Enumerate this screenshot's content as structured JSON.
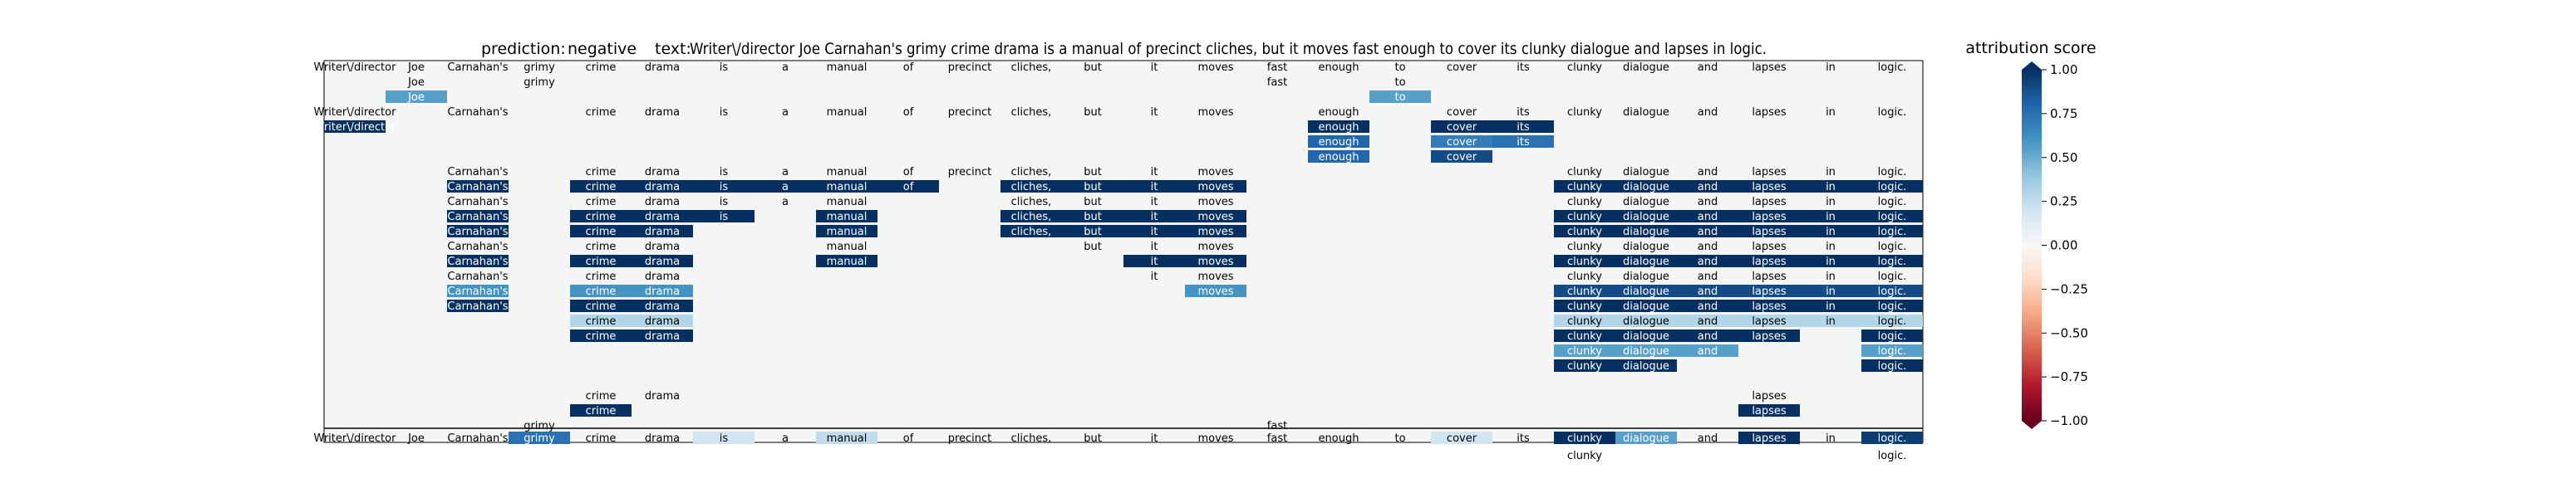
{
  "title": {
    "prediction_label": "prediction:",
    "prediction_value": "negative",
    "text_label": "text:",
    "text_value": "Writer\\/director Joe Carnahan's grimy crime drama is a manual of precinct cliches, but it moves fast enough to cover its clunky dialogue and lapses in logic."
  },
  "colorbar": {
    "title": "attribution score",
    "ticks": [
      "1.00",
      "0.75",
      "0.50",
      "0.25",
      "0.00",
      "−0.25",
      "−0.50",
      "−0.75",
      "−1.00"
    ],
    "tick_values": [
      1.0,
      0.75,
      0.5,
      0.25,
      0.0,
      -0.25,
      -0.5,
      -0.75,
      -1.0
    ],
    "colormap": "RdBu",
    "range": [
      -1,
      1
    ]
  },
  "chart_data": {
    "type": "heatmap",
    "tokens": [
      "Writer\\/director",
      "Joe",
      "Carnahan's",
      "grimy",
      "crime",
      "drama",
      "is",
      "a",
      "manual",
      "of",
      "precinct",
      "cliches,",
      "but",
      "it",
      "moves",
      "fast",
      "enough",
      "to",
      "cover",
      "its",
      "clunky",
      "dialogue",
      "and",
      "lapses",
      "in",
      "logic."
    ],
    "rows": [
      {
        "shown": [
          0,
          1,
          2,
          3,
          4,
          5,
          6,
          7,
          8,
          9,
          10,
          11,
          12,
          13,
          14,
          15,
          16,
          17,
          18,
          19,
          20,
          21,
          22,
          23,
          24,
          25
        ],
        "scores": {}
      },
      {
        "shown": [
          1,
          3,
          15,
          17
        ],
        "scores": {}
      },
      {
        "shown": [
          1,
          17
        ],
        "scores": {
          "1": 0.55,
          "17": 0.55
        }
      },
      {
        "shown": [
          0,
          2,
          4,
          5,
          6,
          7,
          8,
          9,
          10,
          11,
          12,
          13,
          14,
          16,
          18,
          19,
          20,
          21,
          22,
          23,
          24,
          25
        ],
        "scores": {}
      },
      {
        "shown": [
          0,
          16,
          18,
          19
        ],
        "scores": {
          "0": 1.0,
          "16": 1.0,
          "18": 1.0,
          "19": 1.0
        }
      },
      {
        "shown": [
          16,
          18,
          19
        ],
        "scores": {
          "16": 0.8,
          "18": 0.7,
          "19": 0.75
        }
      },
      {
        "shown": [
          16,
          18
        ],
        "scores": {
          "16": 0.8,
          "18": 0.9
        }
      },
      {
        "shown": [
          2,
          4,
          5,
          6,
          7,
          8,
          9,
          10,
          11,
          12,
          13,
          14,
          20,
          21,
          22,
          23,
          24,
          25
        ],
        "scores": {}
      },
      {
        "shown": [
          2,
          4,
          5,
          6,
          7,
          8,
          9,
          11,
          12,
          13,
          14,
          20,
          21,
          22,
          23,
          24,
          25
        ],
        "scores": {
          "2": 1.0,
          "4": 1.0,
          "5": 1.0,
          "6": 1.0,
          "7": 1.0,
          "8": 1.0,
          "9": 1.0,
          "11": 1.0,
          "12": 1.0,
          "13": 1.0,
          "14": 1.0,
          "20": 1.0,
          "21": 1.0,
          "22": 1.0,
          "23": 1.0,
          "24": 1.0,
          "25": 1.0
        }
      },
      {
        "shown": [
          2,
          4,
          5,
          6,
          7,
          8,
          11,
          12,
          13,
          14,
          20,
          21,
          22,
          23,
          24,
          25
        ],
        "scores": {}
      },
      {
        "shown": [
          2,
          4,
          5,
          6,
          8,
          11,
          12,
          13,
          14,
          20,
          21,
          22,
          23,
          24,
          25
        ],
        "scores": {
          "2": 1.0,
          "4": 1.0,
          "5": 1.0,
          "6": 1.0,
          "8": 1.0,
          "11": 1.0,
          "12": 1.0,
          "13": 1.0,
          "14": 1.0,
          "20": 1.0,
          "21": 1.0,
          "22": 1.0,
          "23": 1.0,
          "24": 1.0,
          "25": 1.0
        }
      },
      {
        "shown": [
          2,
          4,
          5,
          8,
          11,
          12,
          13,
          14,
          20,
          21,
          22,
          23,
          24,
          25
        ],
        "scores": {
          "2": 1.0,
          "4": 1.0,
          "5": 1.0,
          "8": 1.0,
          "11": 1.0,
          "12": 1.0,
          "13": 1.0,
          "14": 1.0,
          "20": 1.0,
          "21": 1.0,
          "22": 1.0,
          "23": 1.0,
          "24": 1.0,
          "25": 1.0
        }
      },
      {
        "shown": [
          2,
          4,
          5,
          8,
          12,
          13,
          14,
          20,
          21,
          22,
          23,
          24,
          25
        ],
        "scores": {}
      },
      {
        "shown": [
          2,
          4,
          5,
          8,
          13,
          14,
          20,
          21,
          22,
          23,
          24,
          25
        ],
        "scores": {
          "2": 1.0,
          "4": 1.0,
          "5": 1.0,
          "8": 1.0,
          "13": 1.0,
          "14": 1.0,
          "20": 1.0,
          "21": 1.0,
          "22": 1.0,
          "23": 1.0,
          "24": 1.0,
          "25": 1.0
        }
      },
      {
        "shown": [
          2,
          4,
          5,
          13,
          14,
          20,
          21,
          22,
          23,
          24,
          25
        ],
        "scores": {}
      },
      {
        "shown": [
          2,
          4,
          5,
          14,
          20,
          21,
          22,
          23,
          24,
          25
        ],
        "scores": {
          "2": 0.6,
          "4": 0.6,
          "5": 0.6,
          "14": 0.6,
          "20": 0.9,
          "21": 0.9,
          "22": 0.9,
          "23": 0.9,
          "24": 0.9,
          "25": 0.9
        }
      },
      {
        "shown": [
          2,
          4,
          5,
          20,
          21,
          22,
          23,
          24,
          25
        ],
        "scores": {
          "2": 1.0,
          "4": 1.0,
          "5": 1.0,
          "20": 1.0,
          "21": 1.0,
          "22": 1.0,
          "23": 1.0,
          "24": 1.0,
          "25": 1.0
        }
      },
      {
        "shown": [
          4,
          5,
          20,
          21,
          22,
          23,
          24,
          25
        ],
        "scores": {
          "4": 0.3,
          "5": 0.3,
          "20": 0.3,
          "21": 0.3,
          "22": 0.3,
          "23": 0.3,
          "24": 0.3,
          "25": 0.3
        }
      },
      {
        "shown": [
          4,
          5,
          20,
          21,
          22,
          23,
          25
        ],
        "scores": {
          "4": 1.0,
          "5": 1.0,
          "20": 1.0,
          "21": 1.0,
          "22": 1.0,
          "23": 1.0,
          "25": 1.0
        }
      },
      {
        "shown": [
          20,
          21,
          22,
          25
        ],
        "scores": {
          "20": 0.55,
          "21": 0.55,
          "22": 0.55,
          "25": 0.55
        }
      },
      {
        "shown": [
          20,
          21,
          25
        ],
        "scores": {
          "20": 1.0,
          "21": 1.0,
          "25": 1.0
        }
      },
      {
        "shown": [],
        "scores": {}
      },
      {
        "shown": [
          4,
          5,
          23
        ],
        "scores": {}
      },
      {
        "shown": [
          4,
          23
        ],
        "scores": {
          "4": 1.0,
          "23": 1.0
        }
      },
      {
        "shown": [
          3,
          15
        ],
        "scores": {}
      },
      {
        "shown": [],
        "scores": {}
      },
      {
        "shown": [
          20,
          25
        ],
        "scores": {}
      },
      {
        "shown": [
          0,
          1,
          2,
          3,
          4,
          5,
          6,
          7,
          8,
          9,
          10,
          11,
          12,
          13,
          14,
          15,
          16,
          17,
          18,
          19,
          20,
          21,
          22,
          23,
          24,
          25
        ],
        "scores": {
          "3": 0.75,
          "6": 0.2,
          "8": 0.25,
          "18": 0.2,
          "20": 1.0,
          "21": 0.55,
          "23": 1.0,
          "25": 0.95
        }
      }
    ]
  }
}
